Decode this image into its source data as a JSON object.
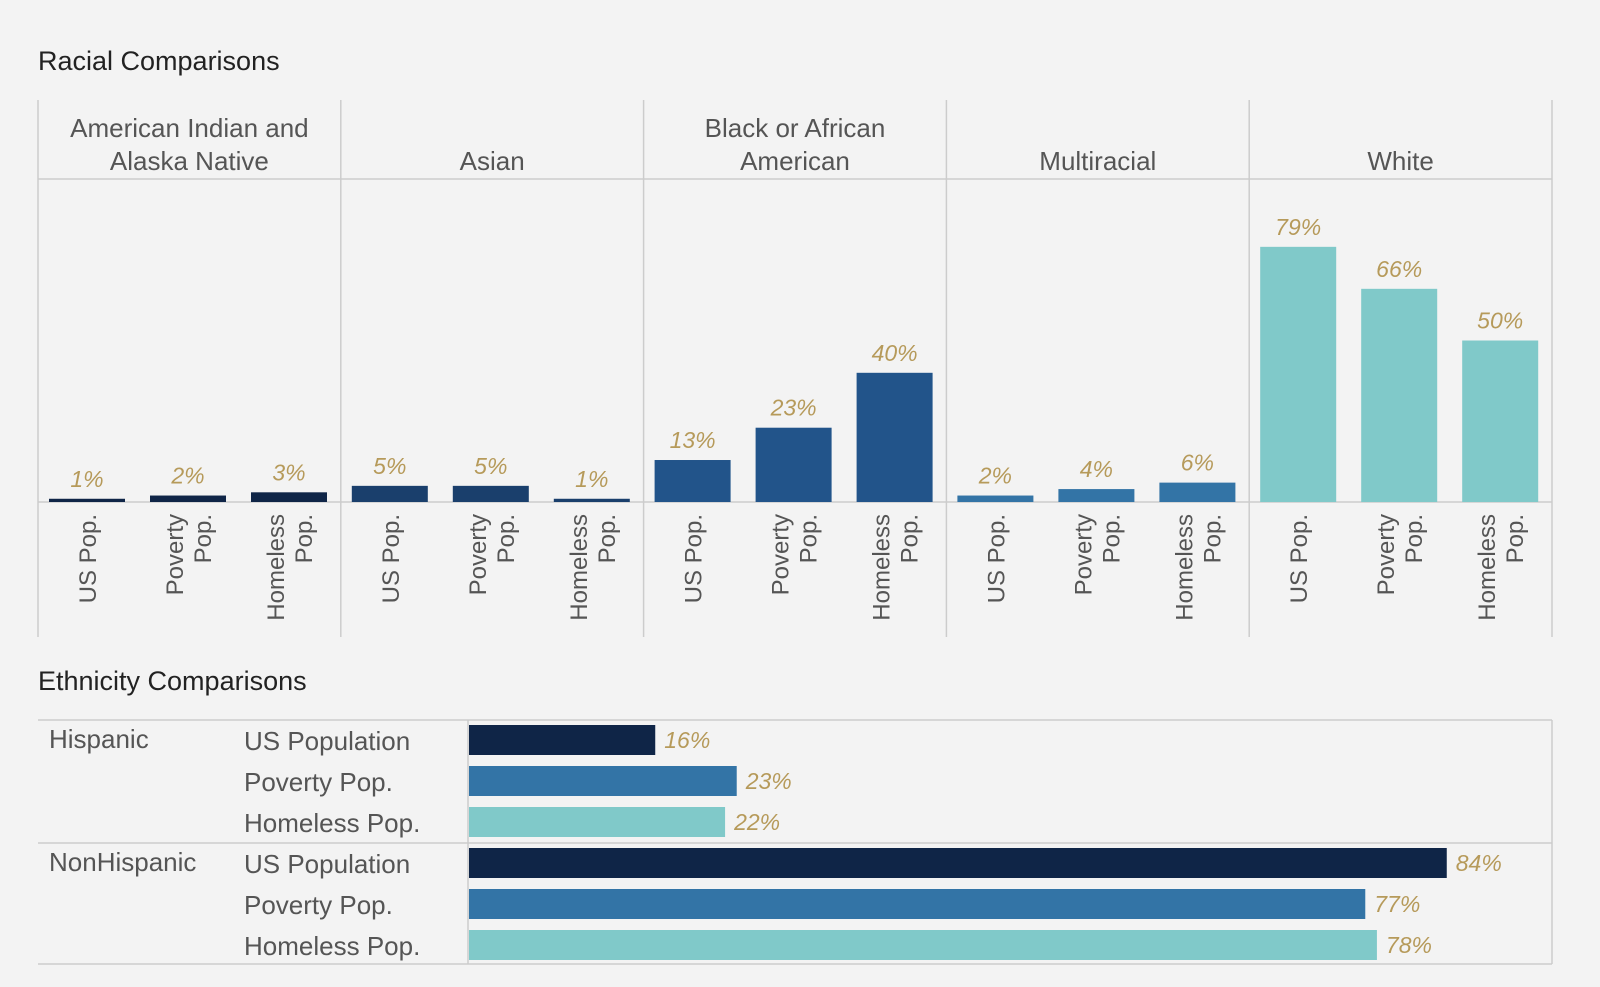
{
  "racial": {
    "title": "Racial Comparisons"
  },
  "ethnicity": {
    "title": "Ethnicity Comparisons"
  },
  "colors": {
    "american_indian": "#0f2547",
    "asian": "#1a3f6c",
    "black": "#22548a",
    "multiracial": "#3374a6",
    "white": "#80c9c9",
    "us_population": "#0f2547",
    "poverty_pop": "#3374a6",
    "homeless_pop": "#80c9c9",
    "value_label": "#b69a5a",
    "grid": "#cccccc"
  },
  "chart_data": [
    {
      "type": "bar",
      "title": "Racial Comparisons",
      "groups": [
        {
          "name": "American Indian and Alaska Native",
          "lines": [
            "American Indian and",
            "Alaska Native"
          ],
          "color_key": "american_indian"
        },
        {
          "name": "Asian",
          "lines": [
            "Asian"
          ],
          "color_key": "asian"
        },
        {
          "name": "Black or African American",
          "lines": [
            "Black or African",
            "American"
          ],
          "color_key": "black"
        },
        {
          "name": "Multiracial",
          "lines": [
            "Multiracial"
          ],
          "color_key": "multiracial"
        },
        {
          "name": "White",
          "lines": [
            "White"
          ],
          "color_key": "white"
        }
      ],
      "categories": [
        {
          "name": "US Pop.",
          "lines": [
            "US Pop."
          ]
        },
        {
          "name": "Poverty Pop.",
          "lines": [
            "Poverty",
            "Pop."
          ]
        },
        {
          "name": "Homeless Pop.",
          "lines": [
            "Homeless",
            "Pop."
          ]
        }
      ],
      "values": [
        [
          1,
          2,
          3
        ],
        [
          5,
          5,
          1
        ],
        [
          13,
          23,
          40
        ],
        [
          2,
          4,
          6
        ],
        [
          79,
          66,
          50
        ]
      ],
      "value_labels": [
        [
          "1%",
          "2%",
          "3%"
        ],
        [
          "5%",
          "5%",
          "1%"
        ],
        [
          "13%",
          "23%",
          "40%"
        ],
        [
          "2%",
          "4%",
          "6%"
        ],
        [
          "79%",
          "66%",
          "50%"
        ]
      ],
      "ylim": [
        0,
        100
      ],
      "grid": false
    },
    {
      "type": "bar",
      "orientation": "horizontal",
      "title": "Ethnicity Comparisons",
      "groups": [
        {
          "name": "Hispanic"
        },
        {
          "name": "NonHispanic"
        }
      ],
      "categories": [
        {
          "name": "US Population",
          "color_key": "us_population"
        },
        {
          "name": "Poverty Pop.",
          "color_key": "poverty_pop"
        },
        {
          "name": "Homeless Pop.",
          "color_key": "homeless_pop"
        }
      ],
      "values": [
        [
          16,
          23,
          22
        ],
        [
          84,
          77,
          78
        ]
      ],
      "value_labels": [
        [
          "16%",
          "23%",
          "22%"
        ],
        [
          "84%",
          "77%",
          "78%"
        ]
      ],
      "xlim": [
        0,
        100
      ],
      "grid": false
    }
  ]
}
